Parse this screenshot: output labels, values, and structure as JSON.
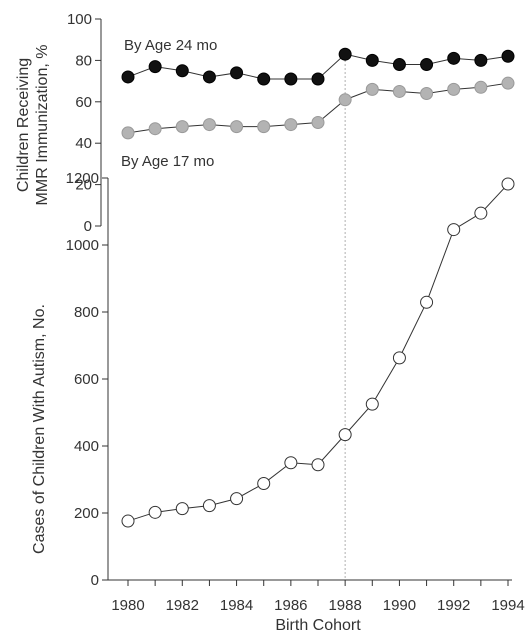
{
  "chart_data": [
    {
      "type": "line",
      "x": [
        1980,
        1981,
        1982,
        1983,
        1984,
        1985,
        1986,
        1987,
        1988,
        1989,
        1990,
        1991,
        1992,
        1993,
        1994
      ],
      "ylabel": [
        "Children Receiving",
        "MMR Immunization, %"
      ],
      "ylim": [
        0,
        100
      ],
      "yticks": [
        0,
        20,
        40,
        60,
        80,
        100
      ],
      "series": [
        {
          "name": "By Age 24 mo",
          "marker": "filled-black",
          "values": [
            72,
            77,
            75,
            72,
            74,
            71,
            71,
            71,
            83,
            80,
            78,
            78,
            81,
            80,
            82
          ]
        },
        {
          "name": "By Age 17 mo",
          "marker": "filled-gray",
          "values": [
            45,
            47,
            48,
            49,
            48,
            48,
            49,
            50,
            61,
            66,
            65,
            64,
            66,
            67,
            69
          ]
        }
      ]
    },
    {
      "type": "line",
      "x": [
        1980,
        1981,
        1982,
        1983,
        1984,
        1985,
        1986,
        1987,
        1988,
        1989,
        1990,
        1991,
        1992,
        1993,
        1994
      ],
      "xlabel": "Birth Cohort",
      "xticks": [
        1980,
        1982,
        1984,
        1986,
        1988,
        1990,
        1992,
        1994
      ],
      "ylabel": "Cases of Children With Autism, No.",
      "ylim": [
        0,
        1200
      ],
      "yticks": [
        0,
        200,
        400,
        600,
        800,
        1000,
        1200
      ],
      "series": [
        {
          "marker": "open-white",
          "values": [
            176,
            202,
            213,
            222,
            243,
            288,
            350,
            344,
            434,
            525,
            663,
            829,
            1046,
            1095,
            1182
          ]
        }
      ]
    }
  ],
  "reference_line": {
    "x": 1988,
    "style": "dotted"
  },
  "colors": {
    "axis": "#333333",
    "line": "#333333",
    "marker_black": "#111111",
    "marker_gray": "#b3b3b3",
    "marker_open": "#ffffff",
    "guide": "#b0b0b0"
  }
}
